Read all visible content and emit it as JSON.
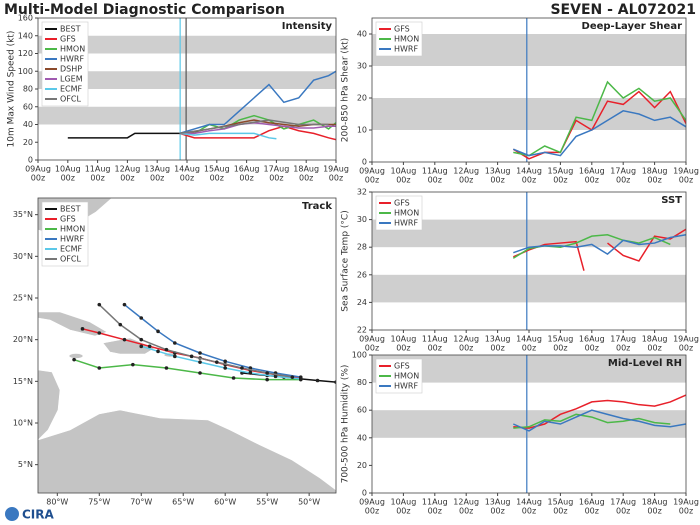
{
  "header": {
    "title": "Multi-Model Diagnostic Comparison",
    "storm": "SEVEN - AL072021"
  },
  "logo": "CIRA",
  "chart_data": [
    {
      "type": "line",
      "title": "Intensity",
      "y_label": "10m Max Wind Speed (kt)",
      "xlim": [
        0,
        10
      ],
      "xtick_hour": "00z",
      "xticks": [
        {
          "value": 0,
          "label": "09Aug"
        },
        {
          "value": 1,
          "label": "10Aug"
        },
        {
          "value": 2,
          "label": "11Aug"
        },
        {
          "value": 3,
          "label": "12Aug"
        },
        {
          "value": 4,
          "label": "13Aug"
        },
        {
          "value": 5,
          "label": "14Aug"
        },
        {
          "value": 6,
          "label": "15Aug"
        },
        {
          "value": 7,
          "label": "16Aug"
        },
        {
          "value": 8,
          "label": "17Aug"
        },
        {
          "value": 9,
          "label": "18Aug"
        },
        {
          "value": 10,
          "label": "19Aug"
        }
      ],
      "ylim": [
        0,
        160
      ],
      "yticks": [
        0,
        20,
        40,
        60,
        80,
        100,
        120,
        140,
        160
      ],
      "bands": [
        [
          120,
          140
        ],
        [
          80,
          100
        ],
        [
          40,
          60
        ]
      ],
      "vlines": [
        {
          "x": 4.77,
          "color": "#5bc8e8"
        },
        {
          "x": 4.97,
          "color": "#555555"
        }
      ],
      "series": [
        {
          "name": "BEST",
          "color": "#111111",
          "x": [
            1,
            2,
            3,
            3.25,
            3.5,
            4,
            4.75
          ],
          "values": [
            25,
            25,
            25,
            30,
            30,
            30,
            30
          ]
        },
        {
          "name": "GFS",
          "color": "#e8202a",
          "x": [
            4.75,
            5.25,
            5.75,
            6.25,
            6.75,
            7.25,
            7.75,
            8.25,
            8.75,
            9.25,
            9.75,
            10
          ],
          "values": [
            30,
            25,
            25,
            25,
            25,
            25,
            33,
            38,
            33,
            30,
            25,
            23
          ]
        },
        {
          "name": "HMON",
          "color": "#4cb848",
          "x": [
            4.75,
            5.25,
            5.75,
            6.25,
            6.75,
            7.25,
            7.75,
            8.25,
            8.75,
            9.25,
            9.75,
            10
          ],
          "values": [
            30,
            30,
            40,
            35,
            45,
            50,
            45,
            35,
            40,
            45,
            35,
            42
          ]
        },
        {
          "name": "HWRF",
          "color": "#3a78c0",
          "x": [
            4.75,
            5.25,
            5.75,
            6.25,
            6.75,
            7.25,
            7.75,
            8.25,
            8.75,
            9.25,
            9.75,
            10
          ],
          "values": [
            30,
            35,
            40,
            40,
            55,
            70,
            85,
            65,
            70,
            90,
            95,
            100
          ]
        },
        {
          "name": "DSHP",
          "color": "#8b4a2b",
          "x": [
            4.75,
            5.25,
            5.75,
            6.25,
            6.75,
            7.25,
            7.75,
            8.25,
            8.75,
            9.25,
            9.75,
            10
          ],
          "values": [
            30,
            32,
            35,
            38,
            42,
            45,
            42,
            40,
            38,
            40,
            40,
            40
          ]
        },
        {
          "name": "LGEM",
          "color": "#a05ab0",
          "x": [
            4.75,
            5.25,
            5.75,
            6.25,
            6.75,
            7.25,
            7.75,
            8.25,
            8.75,
            9.25,
            9.75,
            10
          ],
          "values": [
            30,
            30,
            33,
            35,
            40,
            42,
            40,
            38,
            36,
            36,
            38,
            38
          ]
        },
        {
          "name": "ECMF",
          "color": "#5bc8e8",
          "x": [
            4.75,
            5.25,
            5.75,
            6.25,
            6.75,
            7.25,
            7.75,
            8
          ],
          "values": [
            30,
            28,
            30,
            30,
            30,
            30,
            25,
            24
          ]
        },
        {
          "name": "OFCL",
          "color": "#777777",
          "x": [
            4.75,
            5.75,
            6.75,
            7.75,
            8.75,
            9.75
          ],
          "values": [
            30,
            35,
            40,
            45,
            40,
            40
          ]
        }
      ]
    },
    {
      "type": "line",
      "title": "Deep-Layer Shear",
      "y_label": "200-850 hPa Shear (kt)",
      "xlim": [
        0,
        10
      ],
      "xtick_hour": "00z",
      "xticks": [
        {
          "value": 0,
          "label": "09Aug"
        },
        {
          "value": 1,
          "label": "10Aug"
        },
        {
          "value": 2,
          "label": "11Aug"
        },
        {
          "value": 3,
          "label": "12Aug"
        },
        {
          "value": 4,
          "label": "13Aug"
        },
        {
          "value": 5,
          "label": "14Aug"
        },
        {
          "value": 6,
          "label": "15Aug"
        },
        {
          "value": 7,
          "label": "16Aug"
        },
        {
          "value": 8,
          "label": "17Aug"
        },
        {
          "value": 9,
          "label": "18Aug"
        },
        {
          "value": 10,
          "label": "19Aug"
        }
      ],
      "ylim": [
        0,
        45
      ],
      "yticks": [
        0,
        10,
        20,
        30,
        40
      ],
      "bands": [
        [
          30,
          40
        ],
        [
          10,
          20
        ]
      ],
      "vlines": [
        {
          "x": 4.93,
          "color": "#3a78c0"
        }
      ],
      "series": [
        {
          "name": "GFS",
          "color": "#e8202a",
          "x": [
            4.5,
            5,
            5.5,
            6,
            6.5,
            7,
            7.5,
            8,
            8.5,
            9,
            9.5,
            10
          ],
          "values": [
            4,
            1,
            3,
            3,
            13,
            10,
            19,
            18,
            22,
            17,
            22,
            12
          ]
        },
        {
          "name": "HMON",
          "color": "#4cb848",
          "x": [
            4.5,
            5,
            5.5,
            6,
            6.5,
            7,
            7.5,
            8,
            8.5,
            9,
            9.5,
            10
          ],
          "values": [
            3,
            2,
            5,
            3,
            14,
            13,
            25,
            20,
            23,
            19,
            20,
            13
          ]
        },
        {
          "name": "HWRF",
          "color": "#3a78c0",
          "x": [
            4.5,
            5,
            5.5,
            6,
            6.5,
            7,
            7.5,
            8,
            8.5,
            9,
            9.5,
            10
          ],
          "values": [
            4,
            2,
            3,
            2,
            8,
            10,
            13,
            16,
            15,
            13,
            14,
            11
          ]
        }
      ]
    },
    {
      "type": "map",
      "title": "Track",
      "xlim": [
        -82.3,
        -46.8
      ],
      "ylim": [
        1.6,
        37
      ],
      "xticks": [
        {
          "value": -80,
          "label": "80°W"
        },
        {
          "value": -75,
          "label": "75°W"
        },
        {
          "value": -70,
          "label": "70°W"
        },
        {
          "value": -65,
          "label": "65°W"
        },
        {
          "value": -60,
          "label": "60°W"
        },
        {
          "value": -55,
          "label": "55°W"
        },
        {
          "value": -50,
          "label": "50°W"
        }
      ],
      "yticks": [
        {
          "value": 5,
          "label": "5°N"
        },
        {
          "value": 10,
          "label": "10°N"
        },
        {
          "value": 15,
          "label": "15°N"
        },
        {
          "value": 20,
          "label": "20°N"
        },
        {
          "value": 25,
          "label": "25°N"
        },
        {
          "value": 30,
          "label": "30°N"
        },
        {
          "value": 35,
          "label": "35°N"
        }
      ],
      "series": [
        {
          "name": "BEST",
          "color": "#111111",
          "x": [
            -46.8,
            -49,
            -51,
            -53,
            -55,
            -58
          ],
          "values": [
            14.9,
            15.1,
            15.3,
            15.5,
            15.7,
            16.0
          ]
        },
        {
          "name": "GFS",
          "color": "#e8202a",
          "x": [
            -51,
            -54,
            -57,
            -60,
            -63,
            -66,
            -69,
            -72,
            -75,
            -77
          ],
          "values": [
            15.4,
            15.8,
            16.3,
            17,
            17.8,
            18.4,
            19.2,
            20,
            20.8,
            21.3
          ]
        },
        {
          "name": "HMON",
          "color": "#4cb848",
          "x": [
            -51,
            -55,
            -59,
            -63,
            -67,
            -71,
            -75,
            -78
          ],
          "values": [
            15.2,
            15.2,
            15.4,
            16.0,
            16.6,
            17.0,
            16.6,
            17.6
          ]
        },
        {
          "name": "HWRF",
          "color": "#3a78c0",
          "x": [
            -51,
            -54,
            -57,
            -60,
            -63,
            -66,
            -68,
            -70,
            -72
          ],
          "values": [
            15.5,
            16,
            16.6,
            17.4,
            18.4,
            19.6,
            21,
            22.6,
            24.2
          ]
        },
        {
          "name": "ECMF",
          "color": "#5bc8e8",
          "x": [
            -51,
            -54,
            -57,
            -60,
            -63,
            -66,
            -68,
            -70
          ],
          "values": [
            15.3,
            15.6,
            16,
            16.6,
            17.3,
            18,
            18.6,
            19.2
          ]
        },
        {
          "name": "OFCL",
          "color": "#777777",
          "x": [
            -52,
            -55,
            -58,
            -61,
            -64,
            -67,
            -70,
            -72.5,
            -75
          ],
          "values": [
            15.5,
            16.0,
            16.6,
            17.3,
            18.0,
            18.8,
            20.0,
            21.8,
            24.2
          ]
        }
      ]
    },
    {
      "type": "line",
      "title": "SST",
      "y_label": "Sea Surface Temp (°C)",
      "xlim": [
        0,
        10
      ],
      "xtick_hour": "00z",
      "xticks": [
        {
          "value": 0,
          "label": "09Aug"
        },
        {
          "value": 1,
          "label": "10Aug"
        },
        {
          "value": 2,
          "label": "11Aug"
        },
        {
          "value": 3,
          "label": "12Aug"
        },
        {
          "value": 4,
          "label": "13Aug"
        },
        {
          "value": 5,
          "label": "14Aug"
        },
        {
          "value": 6,
          "label": "15Aug"
        },
        {
          "value": 7,
          "label": "16Aug"
        },
        {
          "value": 8,
          "label": "17Aug"
        },
        {
          "value": 9,
          "label": "18Aug"
        },
        {
          "value": 10,
          "label": "19Aug"
        }
      ],
      "ylim": [
        22,
        32
      ],
      "yticks": [
        22,
        24,
        26,
        28,
        30,
        32
      ],
      "bands": [
        [
          28,
          30
        ],
        [
          24,
          26
        ]
      ],
      "vlines": [
        {
          "x": 4.93,
          "color": "#3a78c0"
        }
      ],
      "series": [
        {
          "name": "GFS",
          "color": "#e8202a",
          "x": [
            4.5,
            5,
            5.5,
            6,
            6.5,
            6.75,
            7,
            7.5,
            8,
            8.5,
            9,
            9.5,
            10
          ],
          "values": [
            27.3,
            27.8,
            28.2,
            28.3,
            28.4,
            26.3,
            null,
            28.3,
            27.4,
            27.0,
            28.8,
            28.6,
            29.3
          ]
        },
        {
          "name": "HMON",
          "color": "#4cb848",
          "x": [
            4.5,
            5,
            5.5,
            6,
            6.5,
            7,
            7.5,
            8,
            8.5,
            9,
            9.5
          ],
          "values": [
            27.2,
            27.9,
            28.1,
            28.0,
            28.3,
            28.8,
            28.9,
            28.5,
            28.3,
            28.7,
            28.2
          ]
        },
        {
          "name": "HWRF",
          "color": "#3a78c0",
          "x": [
            4.5,
            5,
            5.5,
            6,
            6.5,
            7,
            7.5,
            8,
            8.5,
            9,
            9.5,
            10
          ],
          "values": [
            27.6,
            28.0,
            28.1,
            28.1,
            28.0,
            28.2,
            27.5,
            28.5,
            28.2,
            28.3,
            28.7,
            28.9
          ]
        }
      ]
    },
    {
      "type": "line",
      "title": "Mid-Level RH",
      "y_label": "700-500 hPa Humidity (%)",
      "xlim": [
        0,
        10
      ],
      "xtick_hour": "00z",
      "xticks": [
        {
          "value": 0,
          "label": "09Aug"
        },
        {
          "value": 1,
          "label": "10Aug"
        },
        {
          "value": 2,
          "label": "11Aug"
        },
        {
          "value": 3,
          "label": "12Aug"
        },
        {
          "value": 4,
          "label": "13Aug"
        },
        {
          "value": 5,
          "label": "14Aug"
        },
        {
          "value": 6,
          "label": "15Aug"
        },
        {
          "value": 7,
          "label": "16Aug"
        },
        {
          "value": 8,
          "label": "17Aug"
        },
        {
          "value": 9,
          "label": "18Aug"
        },
        {
          "value": 10,
          "label": "19Aug"
        }
      ],
      "ylim": [
        0,
        100
      ],
      "yticks": [
        0,
        20,
        40,
        60,
        80,
        100
      ],
      "bands": [
        [
          80,
          100
        ],
        [
          40,
          60
        ]
      ],
      "vlines": [
        {
          "x": 4.93,
          "color": "#3a78c0"
        }
      ],
      "series": [
        {
          "name": "GFS",
          "color": "#e8202a",
          "x": [
            4.5,
            5,
            5.5,
            6,
            6.5,
            7,
            7.5,
            8,
            8.5,
            9,
            9.5,
            10
          ],
          "values": [
            48,
            47,
            50,
            57,
            61,
            66,
            67,
            66,
            64,
            63,
            66,
            71
          ]
        },
        {
          "name": "HMON",
          "color": "#4cb848",
          "x": [
            4.5,
            5,
            5.5,
            6,
            6.5,
            7,
            7.5,
            8,
            8.5,
            9,
            9.5
          ],
          "values": [
            47,
            48,
            53,
            52,
            57,
            55,
            51,
            52,
            54,
            51,
            50
          ]
        },
        {
          "name": "HWRF",
          "color": "#3a78c0",
          "x": [
            4.5,
            5,
            5.5,
            6,
            6.5,
            7,
            7.5,
            8,
            8.5,
            9,
            9.5,
            10
          ],
          "values": [
            50,
            45,
            52,
            50,
            55,
            60,
            57,
            54,
            52,
            49,
            48,
            50
          ]
        }
      ]
    }
  ]
}
